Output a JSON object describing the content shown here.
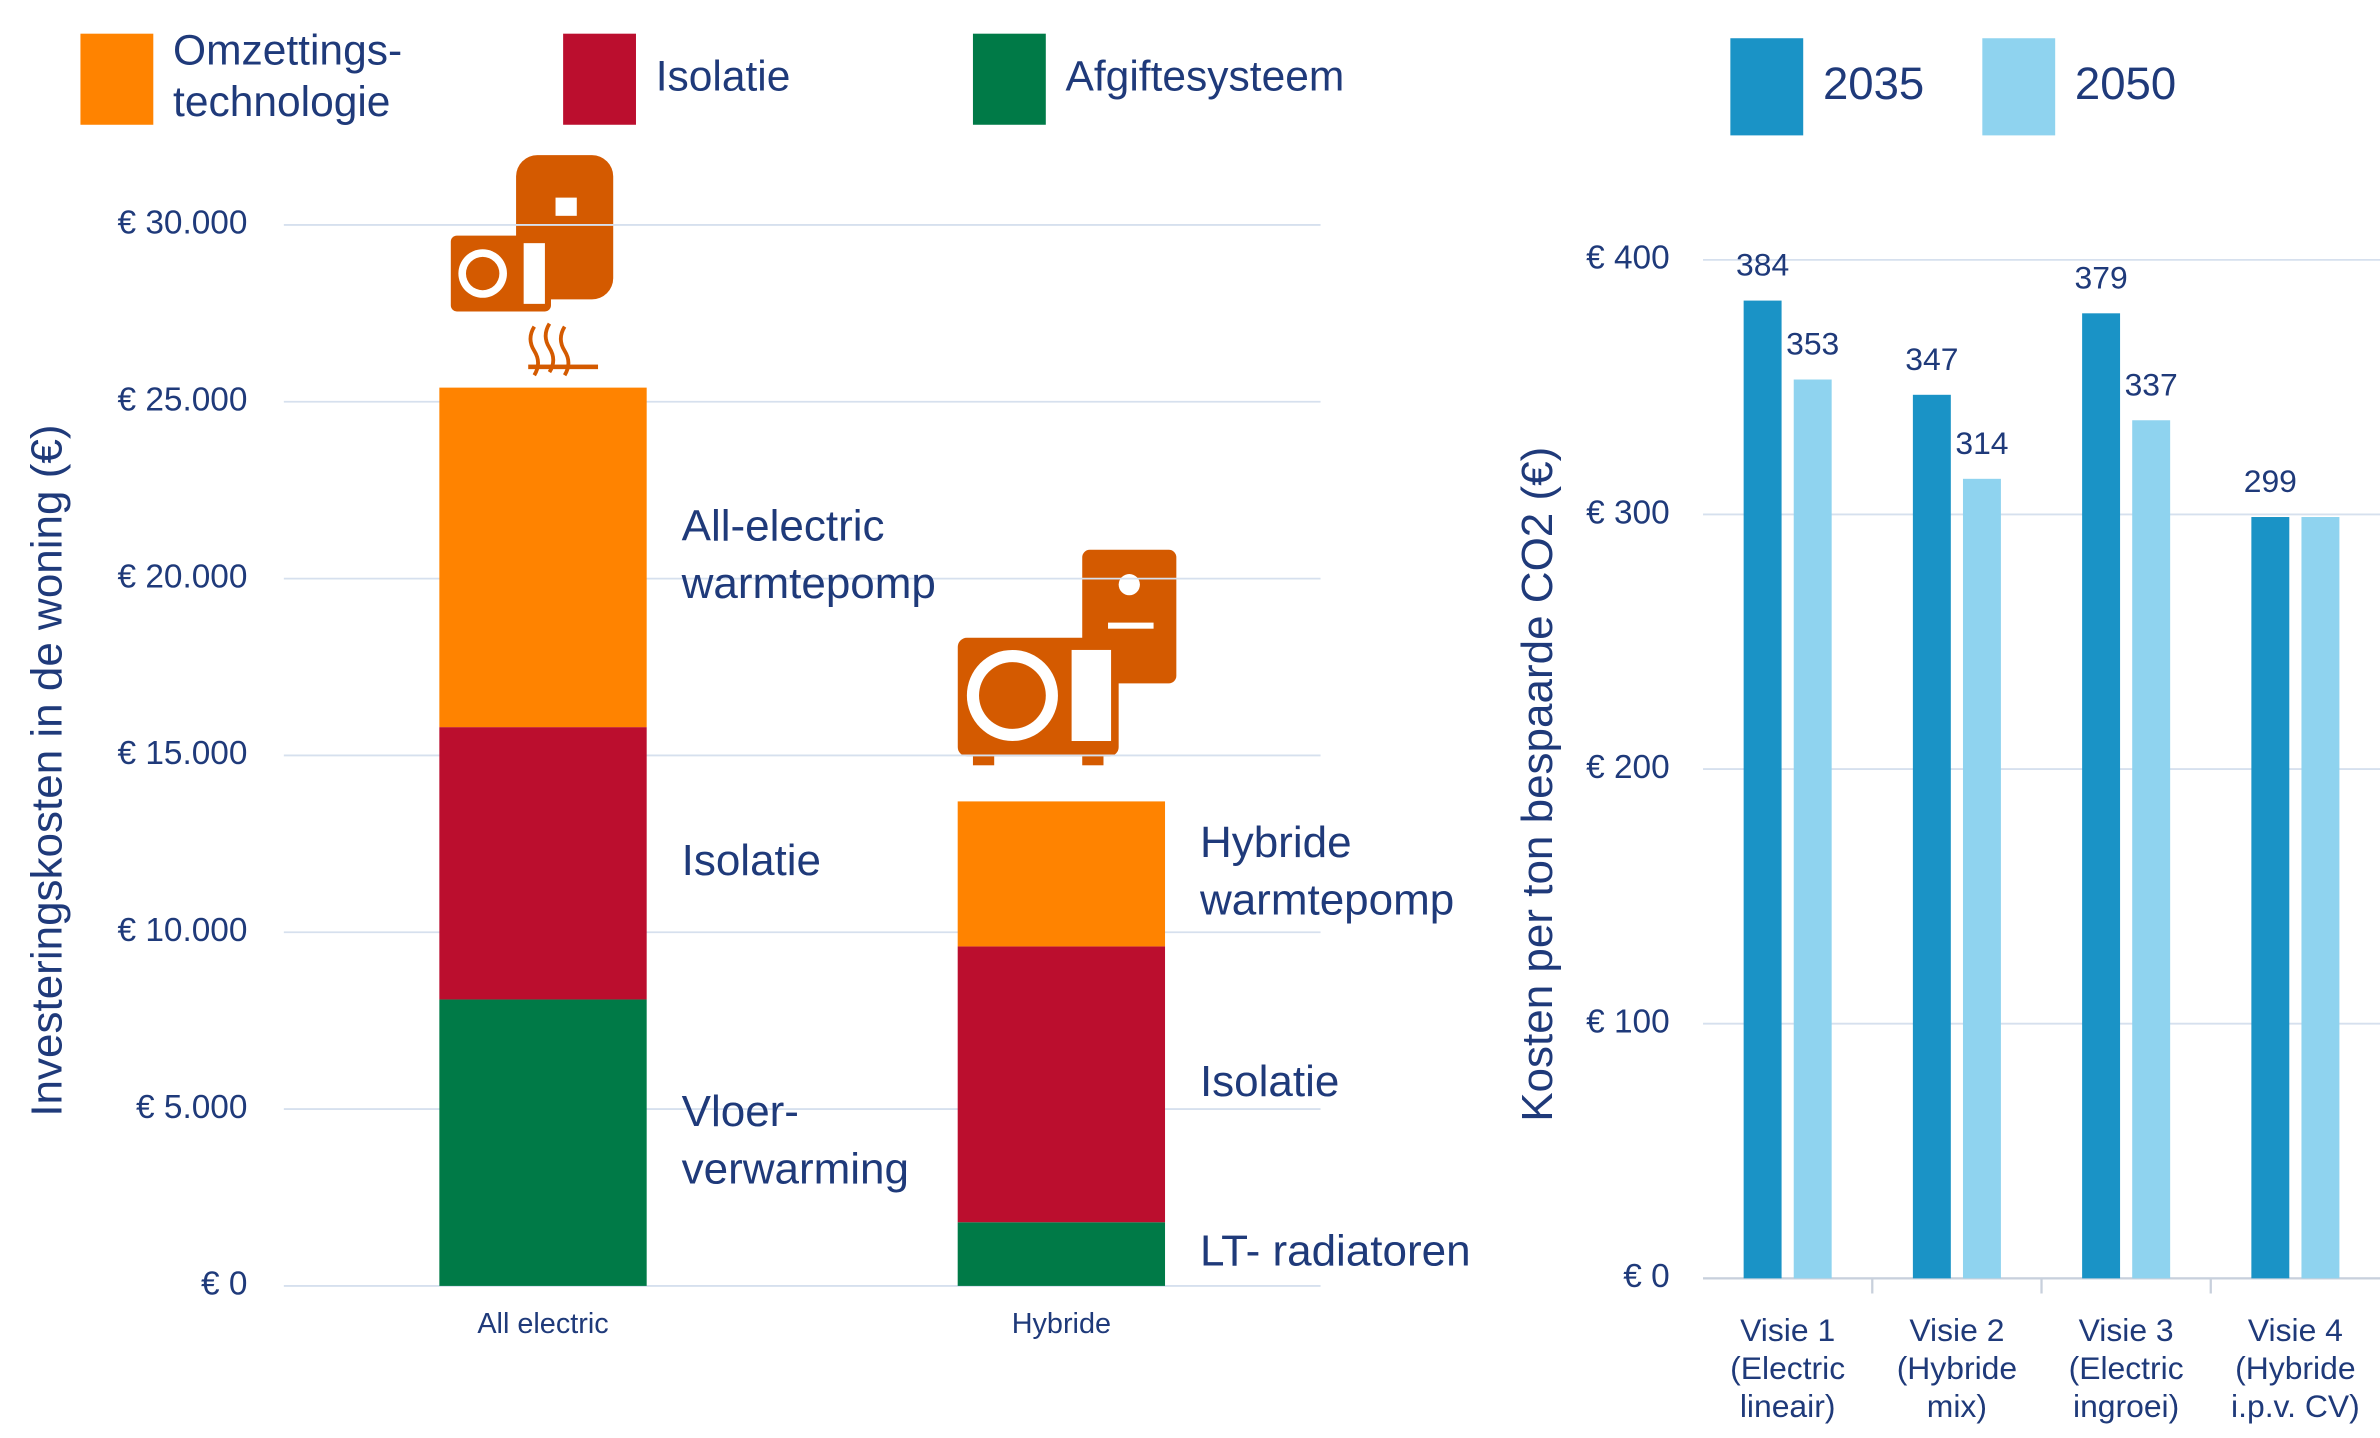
{
  "chart_data": [
    {
      "type": "stacked_bar",
      "y_label": "Investeringskosten in de woning (€)",
      "categories": [
        "All electric",
        "Hybride"
      ],
      "series": [
        {
          "name": "Afgiftesysteem",
          "color": "#007a47",
          "values": [
            8100,
            1800
          ],
          "labels": [
            "Vloer-\nverwarming",
            "LT- radiatoren"
          ]
        },
        {
          "name": "Isolatie",
          "color": "#bb0e2e",
          "values": [
            7700,
            7800
          ],
          "labels": [
            "Isolatie",
            "Isolatie"
          ]
        },
        {
          "name": "Omzettings-\ntechnologie",
          "color": "#ff8300",
          "values": [
            9600,
            4100
          ],
          "labels": [
            "All-electric\nwarmtepomp",
            "Hybride\nwarmtepomp"
          ]
        }
      ],
      "ylim": [
        0,
        30000
      ],
      "yticks": [
        {
          "value": 0,
          "label": "€ 0"
        },
        {
          "value": 5000,
          "label": "€ 5.000"
        },
        {
          "value": 10000,
          "label": "€ 10.000"
        },
        {
          "value": 15000,
          "label": "€ 15.000"
        },
        {
          "value": 20000,
          "label": "€ 20.000"
        },
        {
          "value": 25000,
          "label": "€ 25.000"
        },
        {
          "value": 30000,
          "label": "€ 30.000"
        }
      ],
      "grid": true
    },
    {
      "type": "grouped_bar",
      "y_label": "Kosten per ton bespaarde CO2 (€)",
      "categories": [
        "Visie 1\n(Electric\nlineair)",
        "Visie 2\n(Hybride\nmix)",
        "Visie 3\n(Electric\ningroei)",
        "Visie 4\n(Hybride\ni.p.v. CV)"
      ],
      "series": [
        {
          "name": "2035",
          "color": "#1a93c6",
          "values": [
            384,
            347,
            379,
            299
          ],
          "value_labels": [
            "384",
            "347",
            "379",
            "299"
          ]
        },
        {
          "name": "2050",
          "color": "#8fd3ef",
          "values": [
            353,
            314,
            337,
            299
          ],
          "value_labels": [
            "353",
            "314",
            "337",
            null
          ]
        }
      ],
      "ylim": [
        0,
        400
      ],
      "yticks": [
        {
          "value": 0,
          "label": "€ 0"
        },
        {
          "value": 100,
          "label": "€ 100"
        },
        {
          "value": 200,
          "label": "€ 200"
        },
        {
          "value": 300,
          "label": "€ 300"
        },
        {
          "value": 400,
          "label": "€ 400"
        }
      ],
      "grid": true
    }
  ]
}
